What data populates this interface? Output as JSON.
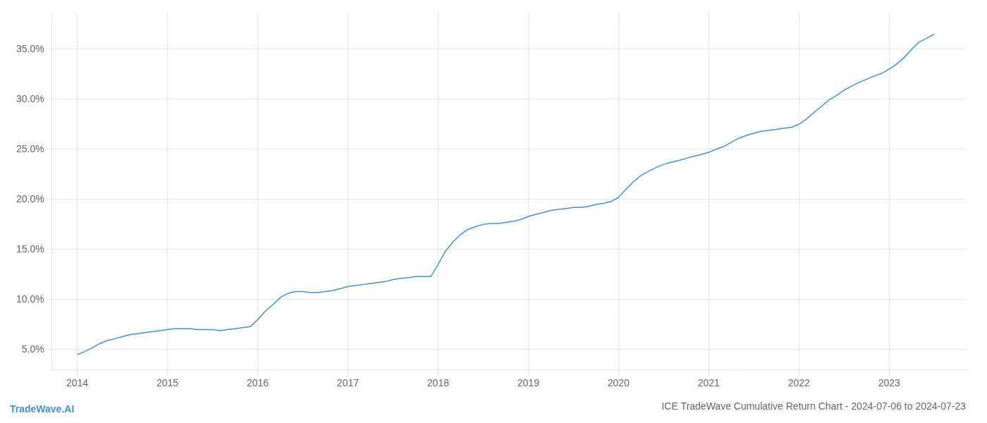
{
  "chart_data": {
    "type": "line",
    "title": "ICE TradeWave Cumulative Return Chart - 2024-07-06 to 2024-07-23",
    "annotations": [
      {
        "text": "TradeWave.AI",
        "color": "#4a90c4"
      }
    ],
    "x": [
      2014.0,
      2014.08,
      2014.17,
      2014.25,
      2014.33,
      2014.42,
      2014.5,
      2014.58,
      2014.67,
      2014.75,
      2014.83,
      2014.92,
      2015.0,
      2015.08,
      2015.17,
      2015.25,
      2015.33,
      2015.42,
      2015.5,
      2015.58,
      2015.67,
      2015.75,
      2015.83,
      2015.92,
      2016.0,
      2016.08,
      2016.17,
      2016.25,
      2016.33,
      2016.42,
      2016.5,
      2016.58,
      2016.67,
      2016.75,
      2016.83,
      2016.92,
      2017.0,
      2017.08,
      2017.17,
      2017.25,
      2017.33,
      2017.42,
      2017.5,
      2017.58,
      2017.67,
      2017.75,
      2017.83,
      2017.92,
      2018.0,
      2018.08,
      2018.17,
      2018.25,
      2018.33,
      2018.42,
      2018.5,
      2018.58,
      2018.67,
      2018.75,
      2018.83,
      2018.92,
      2019.0,
      2019.08,
      2019.17,
      2019.25,
      2019.33,
      2019.42,
      2019.5,
      2019.58,
      2019.67,
      2019.75,
      2019.83,
      2019.92,
      2020.0,
      2020.08,
      2020.17,
      2020.25,
      2020.33,
      2020.42,
      2020.5,
      2020.58,
      2020.67,
      2020.75,
      2020.83,
      2020.92,
      2021.0,
      2021.08,
      2021.17,
      2021.25,
      2021.33,
      2021.42,
      2021.5,
      2021.58,
      2021.67,
      2021.75,
      2021.83,
      2021.92,
      2022.0,
      2022.08,
      2022.17,
      2022.25,
      2022.33,
      2022.42,
      2022.5,
      2022.58,
      2022.67,
      2022.75,
      2022.83,
      2022.92,
      2023.0,
      2023.08,
      2023.17,
      2023.25,
      2023.33,
      2023.42,
      2023.5
    ],
    "values": [
      4.5,
      4.8,
      5.2,
      5.6,
      5.9,
      6.1,
      6.3,
      6.5,
      6.6,
      6.7,
      6.8,
      6.9,
      7.0,
      7.1,
      7.1,
      7.1,
      7.0,
      7.0,
      7.0,
      6.9,
      7.0,
      7.1,
      7.2,
      7.3,
      8.0,
      8.8,
      9.5,
      10.2,
      10.6,
      10.8,
      10.8,
      10.7,
      10.7,
      10.8,
      10.9,
      11.1,
      11.3,
      11.4,
      11.5,
      11.6,
      11.7,
      11.8,
      12.0,
      12.1,
      12.2,
      12.3,
      12.3,
      12.3,
      13.5,
      14.8,
      15.8,
      16.5,
      17.0,
      17.3,
      17.5,
      17.6,
      17.6,
      17.7,
      17.8,
      18.0,
      18.3,
      18.5,
      18.7,
      18.9,
      19.0,
      19.1,
      19.2,
      19.2,
      19.3,
      19.5,
      19.6,
      19.8,
      20.2,
      21.0,
      21.8,
      22.4,
      22.8,
      23.2,
      23.5,
      23.7,
      23.9,
      24.1,
      24.3,
      24.5,
      24.7,
      25.0,
      25.3,
      25.7,
      26.1,
      26.4,
      26.6,
      26.8,
      26.9,
      27.0,
      27.1,
      27.2,
      27.5,
      28.0,
      28.7,
      29.3,
      29.9,
      30.4,
      30.9,
      31.3,
      31.7,
      32.0,
      32.3,
      32.6,
      33.0,
      33.5,
      34.2,
      35.0,
      35.7,
      36.1,
      36.5
    ],
    "color": "#4a90c4",
    "xlim": [
      2013.72,
      2023.85
    ],
    "xticks": [
      2014,
      2015,
      2016,
      2017,
      2018,
      2019,
      2020,
      2021,
      2022,
      2023
    ],
    "ylim": [
      3.0,
      38.5
    ],
    "yticks": [
      {
        "value": 5.0,
        "label": "5.0%"
      },
      {
        "value": 10.0,
        "label": "10.0%"
      },
      {
        "value": 15.0,
        "label": "15.0%"
      },
      {
        "value": 20.0,
        "label": "20.0%"
      },
      {
        "value": 25.0,
        "label": "25.0%"
      },
      {
        "value": 30.0,
        "label": "30.0%"
      },
      {
        "value": 35.0,
        "label": "35.0%"
      }
    ],
    "grid": true
  }
}
